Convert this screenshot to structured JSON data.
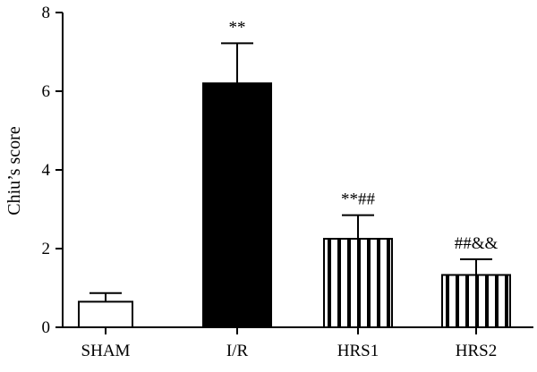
{
  "chart_data": {
    "type": "bar",
    "title": "",
    "xlabel": "",
    "ylabel": "Chiu’s score",
    "ylim": [
      0,
      8
    ],
    "yticks": [
      0,
      2,
      4,
      6,
      8
    ],
    "grid": false,
    "categories": [
      "SHAM",
      "I/R",
      "HRS1",
      "HRS2"
    ],
    "values": [
      0.65,
      6.2,
      2.25,
      1.33
    ],
    "errors": [
      0.22,
      1.02,
      0.6,
      0.4
    ],
    "annotations": [
      "",
      "**",
      "**##",
      "##&&"
    ],
    "fills": [
      "white",
      "black",
      "vertical-stripes",
      "vertical-stripes"
    ]
  },
  "colors": {
    "ink": "#000000",
    "background": "#ffffff"
  }
}
